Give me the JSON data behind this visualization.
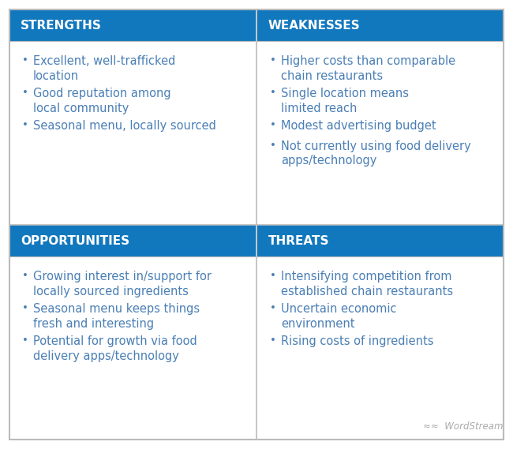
{
  "background_color": "#ffffff",
  "header_bg_color": "#1278be",
  "header_text_color": "#ffffff",
  "cell_bg_color": "#ffffff",
  "cell_text_color": "#4a7fb5",
  "border_color": "#bbbbbb",
  "bullet_char": "•",
  "header_fontsize": 11.0,
  "body_fontsize": 10.5,
  "outer_border_color": "#bbbbbb",
  "quadrants": [
    {
      "title": "STRENGTHS",
      "items": [
        "Excellent, well-trafficked\nlocation",
        "Good reputation among\nlocal community",
        "Seasonal menu, locally sourced"
      ],
      "col": 0,
      "row": 0
    },
    {
      "title": "WEAKNESSES",
      "items": [
        "Higher costs than comparable\nchain restaurants",
        "Single location means\nlimited reach",
        "Modest advertising budget",
        "Not currently using food delivery\napps/technology"
      ],
      "col": 1,
      "row": 0
    },
    {
      "title": "OPPORTUNITIES",
      "items": [
        "Growing interest in/support for\nlocally sourced ingredients",
        "Seasonal menu keeps things\nfresh and interesting",
        "Potential for growth via food\ndelivery apps/technology"
      ],
      "col": 0,
      "row": 1
    },
    {
      "title": "THREATS",
      "items": [
        "Intensifying competition from\nestablished chain restaurants",
        "Uncertain economic\nenvironment",
        "Rising costs of ingredients"
      ],
      "col": 1,
      "row": 1
    }
  ],
  "wordstream_text": "WordStream"
}
